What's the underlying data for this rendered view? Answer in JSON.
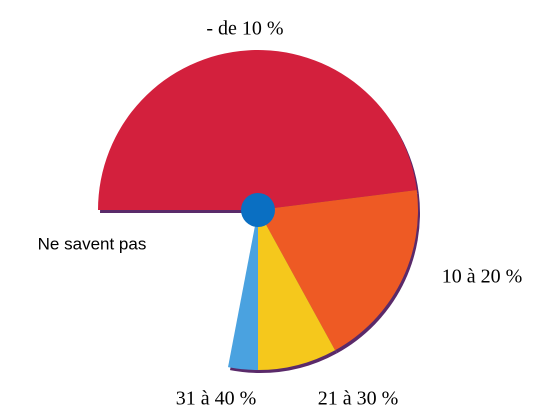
{
  "chart_data": {
    "type": "pie",
    "categories": [
      "- de 10 %",
      "10 à 20 %",
      "21 à 30 %",
      "31 à 40 %",
      "Ne savent pas"
    ],
    "values": [
      48,
      19,
      8,
      3,
      22
    ],
    "colors": [
      "#d3203d",
      "#ee5a24",
      "#f5c81c",
      "#4aa2e0",
      "none"
    ]
  }
}
